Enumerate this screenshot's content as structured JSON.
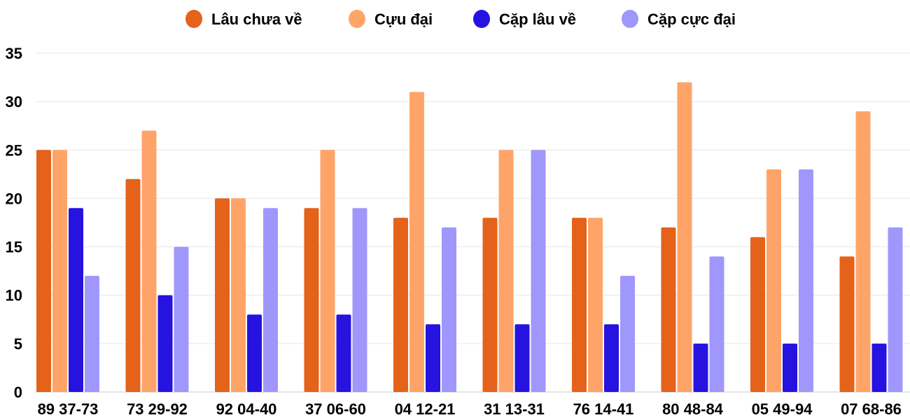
{
  "chart_data": {
    "type": "bar",
    "categories": [
      "89 37-73",
      "73 29-92",
      "92 04-40",
      "37 06-60",
      "04 12-21",
      "31 13-31",
      "76 14-41",
      "80 48-84",
      "05 49-94",
      "07 68-86"
    ],
    "series": [
      {
        "name": "Lâu chưa về",
        "color": "#e4621a",
        "values": [
          25,
          22,
          20,
          19,
          18,
          18,
          18,
          17,
          16,
          14
        ]
      },
      {
        "name": "Cựu đại",
        "color": "#ffa468",
        "values": [
          25,
          27,
          20,
          25,
          31,
          25,
          18,
          32,
          23,
          29
        ]
      },
      {
        "name": "Cặp lâu về",
        "color": "#2613e0",
        "values": [
          19,
          10,
          8,
          8,
          7,
          7,
          7,
          5,
          5,
          5
        ]
      },
      {
        "name": "Cặp cực đại",
        "color": "#a097fc",
        "values": [
          12,
          15,
          19,
          19,
          17,
          25,
          12,
          14,
          23,
          17
        ]
      }
    ],
    "ylim": [
      0,
      35
    ],
    "yticks": [
      "0",
      "5",
      "10",
      "15",
      "20",
      "25",
      "30",
      "35"
    ],
    "grid": true,
    "legend": "top"
  }
}
